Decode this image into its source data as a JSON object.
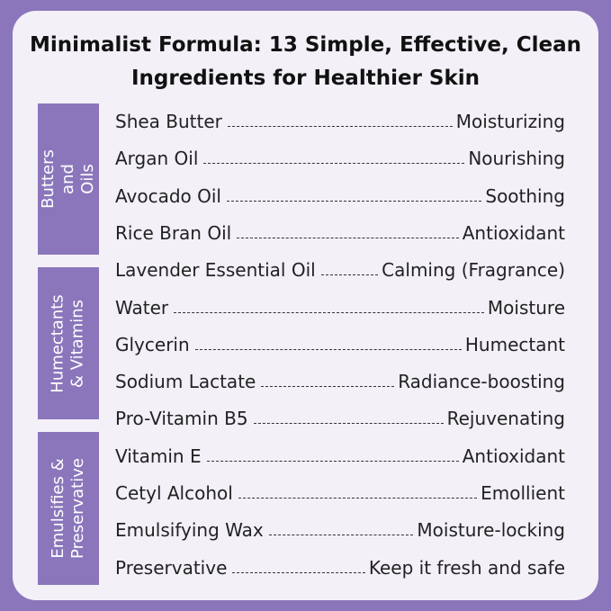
{
  "title": "Minimalist Formula: 13 Simple, Effective, Clean Ingredients for Healthier Skin",
  "colors": {
    "background": "#8b76bc",
    "card": "#f3f0f8",
    "category": "#8b76bc"
  },
  "categories": [
    {
      "label": "Butters and Oils"
    },
    {
      "label": "Humectants & Vitamins"
    },
    {
      "label": "Emulsifies & Preservative"
    }
  ],
  "ingredients": [
    {
      "name": "Shea Butter",
      "benefit": "Moisturizing"
    },
    {
      "name": "Argan Oil",
      "benefit": "Nourishing"
    },
    {
      "name": "Avocado Oil",
      "benefit": "Soothing"
    },
    {
      "name": "Rice Bran Oil",
      "benefit": "Antioxidant"
    },
    {
      "name": "Lavender Essential Oil",
      "benefit": "Calming (Fragrance)"
    },
    {
      "name": "Water",
      "benefit": "Moisture"
    },
    {
      "name": "Glycerin",
      "benefit": "Humectant"
    },
    {
      "name": "Sodium Lactate",
      "benefit": "Radiance-boosting"
    },
    {
      "name": "Pro-Vitamin B5",
      "benefit": "Rejuvenating"
    },
    {
      "name": "Vitamin E",
      "benefit": "Antioxidant"
    },
    {
      "name": "Cetyl Alcohol",
      "benefit": "Emollient"
    },
    {
      "name": "Emulsifying Wax",
      "benefit": "Moisture-locking"
    },
    {
      "name": "Preservative",
      "benefit": "Keep it fresh and safe"
    }
  ]
}
